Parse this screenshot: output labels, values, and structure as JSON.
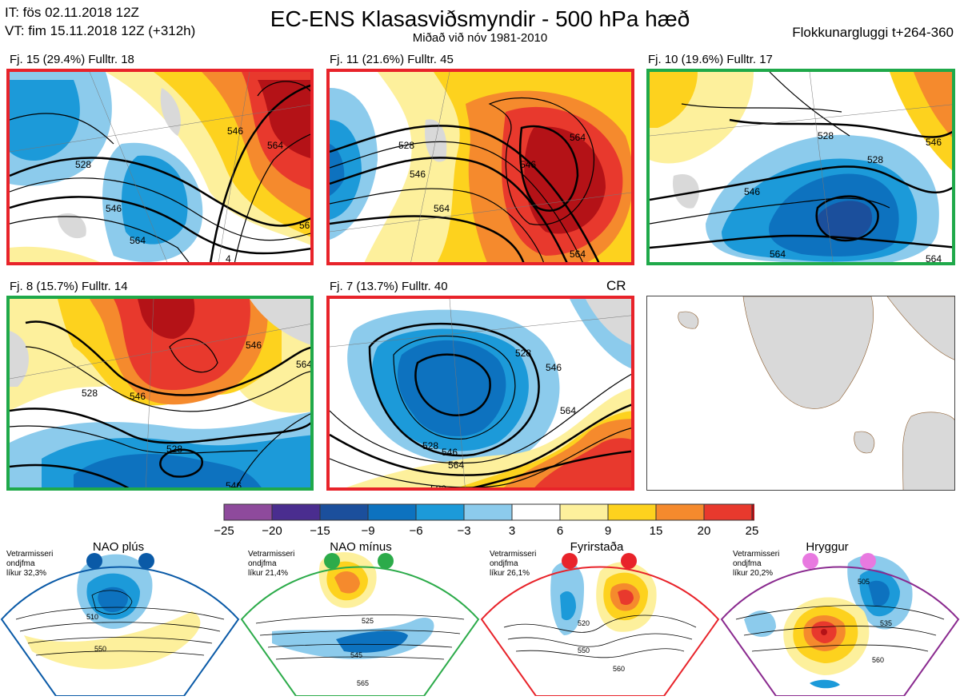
{
  "header": {
    "it_line": "IT: fös 02.11.2018 12Z",
    "vt_line": "VT: fim 15.11.2018 12Z  (+312h)",
    "title": "EC-ENS Klasasviðsmyndir - 500 hPa hæð",
    "subtitle": "Miðað við nóv 1981-2010",
    "window": "Flokkunargluggi t+264-360"
  },
  "panels": [
    {
      "label": "Fj. 15 (29.4%)   Fulltr. 18",
      "border": "red",
      "contours": [
        "528",
        "546",
        "564",
        "546",
        "564",
        "56",
        "4"
      ]
    },
    {
      "label": "Fj. 11 (21.6%)   Fulltr. 45",
      "border": "red",
      "contours": [
        "528",
        "546",
        "564",
        "546",
        "564",
        "564"
      ]
    },
    {
      "label": "Fj. 10 (19.6%)   Fulltr. 17",
      "border": "green",
      "contours": [
        "528",
        "528",
        "546",
        "564",
        "546",
        "564"
      ]
    },
    {
      "label": "Fj. 8 (15.7%)   Fulltr. 14",
      "border": "green",
      "contours": [
        "546",
        "546",
        "528",
        "528",
        "546",
        "564"
      ]
    },
    {
      "label": "Fj. 7 (13.7%)   Fulltr. 40",
      "border": "red",
      "contours": [
        "528",
        "546",
        "528",
        "546",
        "564",
        "564",
        "582"
      ],
      "tag": "CR"
    }
  ],
  "colorbar": {
    "ticks": [
      "−25",
      "−20",
      "−15",
      "−9",
      "−6",
      "−3",
      "3",
      "6",
      "9",
      "15",
      "20",
      "25"
    ],
    "colors": [
      "#8e4a9c",
      "#4a2d8f",
      "#1b4f9c",
      "#0d72bf",
      "#1c9ad9",
      "#8ccbec",
      "#ffffff",
      "#fdf09c",
      "#fdd21e",
      "#f58a2d",
      "#e8392d",
      "#b41217"
    ]
  },
  "regimes": [
    {
      "name": "NAO plús",
      "note": [
        "Vetrarmisseri",
        "ondjfma",
        "líkur 32,3%"
      ],
      "color": "#0a5aa7",
      "dot": "#0a5aa7",
      "contours": [
        "510",
        "550"
      ]
    },
    {
      "name": "NAO mínus",
      "note": [
        "Vetrarmisseri",
        "ondjfma",
        "líkur 21,4%"
      ],
      "color": "#2cab4a",
      "dot": "#2cab4a",
      "contours": [
        "525",
        "545",
        "565"
      ]
    },
    {
      "name": "Fyrirstaða",
      "note": [
        "Vetrarmisseri",
        "ondjfma",
        "líkur 26,1%"
      ],
      "color": "#e8232a",
      "dot": "#e8232a",
      "contours": [
        "520",
        "550",
        "560"
      ]
    },
    {
      "name": "Hryggur",
      "note": [
        "Vetrarmisseri",
        "ondjfma",
        "líkur 20,2%"
      ],
      "color": "#8a2a8f",
      "dot": "#e879e0",
      "contours": [
        "505",
        "535",
        "560"
      ]
    }
  ]
}
